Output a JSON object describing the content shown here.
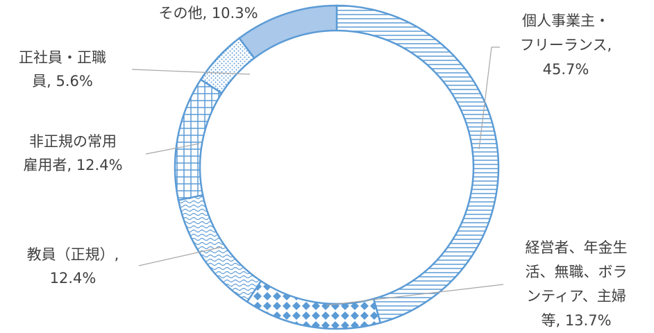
{
  "chart_data": {
    "type": "donut",
    "values": [
      45.7,
      13.7,
      12.4,
      12.4,
      5.6,
      10.3
    ],
    "value_labels": [
      [
        "個人事業主・",
        "フリーランス,",
        "45.7%"
      ],
      [
        "経営者、年金生",
        "活、無職、ボラ",
        "ンティア、主婦",
        "等, 13.7%"
      ],
      [
        "教員（正規）,",
        "12.4%"
      ],
      [
        "非正規の常用",
        "雇用者, 12.4%"
      ],
      [
        "正社員・正職",
        "員, 5.6%"
      ],
      [
        "その他, 10.3%"
      ]
    ],
    "color": "#5b9bd5",
    "fill_light": "#a9c8ea"
  }
}
